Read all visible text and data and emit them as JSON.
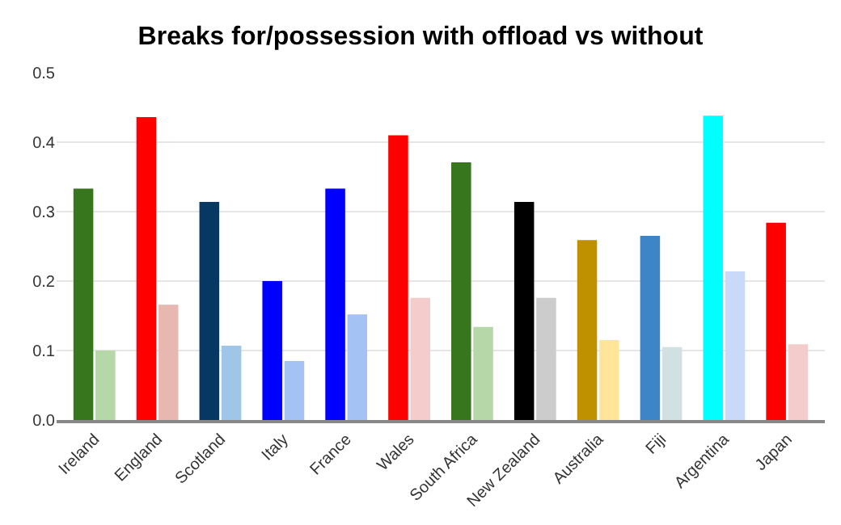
{
  "chart_data": {
    "type": "bar",
    "title": "Breaks for/possession with offload vs without",
    "categories": [
      "Ireland",
      "England",
      "Scotland",
      "Italy",
      "France",
      "Wales",
      "South Africa",
      "New Zealand",
      "Australia",
      "Fiji",
      "Argentina",
      "Japan"
    ],
    "series": [
      {
        "colors": [
          "#38761d",
          "#ff0000",
          "#073763",
          "#0000ff",
          "#0000ff",
          "#ff0000",
          "#38761d",
          "#000000",
          "#bf9000",
          "#3d85c6",
          "#00ffff",
          "#ff0000"
        ],
        "values": [
          0.333,
          0.436,
          0.314,
          0.2,
          0.333,
          0.41,
          0.371,
          0.314,
          0.259,
          0.265,
          0.438,
          0.284
        ]
      },
      {
        "colors": [
          "#b6d7a8",
          "#e6b8af",
          "#9fc5e8",
          "#a4c2f4",
          "#a4c2f4",
          "#f4cccc",
          "#b6d7a8",
          "#cccccc",
          "#ffe599",
          "#d0e0e3",
          "#c9daf8",
          "#f4cccc"
        ],
        "values": [
          0.1,
          0.166,
          0.107,
          0.085,
          0.152,
          0.176,
          0.134,
          0.176,
          0.115,
          0.105,
          0.214,
          0.109
        ]
      }
    ],
    "ylim": [
      0,
      0.5
    ],
    "yticks": [
      {
        "value": 0,
        "label": "0.0"
      },
      0.1,
      0.2,
      0.3,
      0.4,
      0.5
    ],
    "grid": "y"
  }
}
